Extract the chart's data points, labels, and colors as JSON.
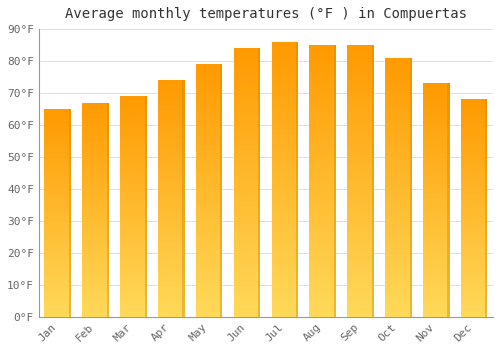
{
  "title": "Average monthly temperatures (°F ) in Compuertas",
  "months": [
    "Jan",
    "Feb",
    "Mar",
    "Apr",
    "May",
    "Jun",
    "Jul",
    "Aug",
    "Sep",
    "Oct",
    "Nov",
    "Dec"
  ],
  "values": [
    65,
    67,
    69,
    74,
    79,
    84,
    86,
    85,
    85,
    81,
    73,
    68
  ],
  "bar_color_top": "#FFA500",
  "bar_color_bottom": "#FFD060",
  "bar_edge_color": "#CC8800",
  "background_color": "#FFFFFF",
  "plot_bg_color": "#FFFFFF",
  "ylim": [
    0,
    90
  ],
  "yticks": [
    0,
    10,
    20,
    30,
    40,
    50,
    60,
    70,
    80,
    90
  ],
  "ytick_labels": [
    "0°F",
    "10°F",
    "20°F",
    "30°F",
    "40°F",
    "50°F",
    "60°F",
    "70°F",
    "80°F",
    "90°F"
  ],
  "title_fontsize": 10,
  "tick_fontsize": 8,
  "grid_color": "#E0E0E0",
  "font_family": "monospace",
  "tick_color": "#666666"
}
